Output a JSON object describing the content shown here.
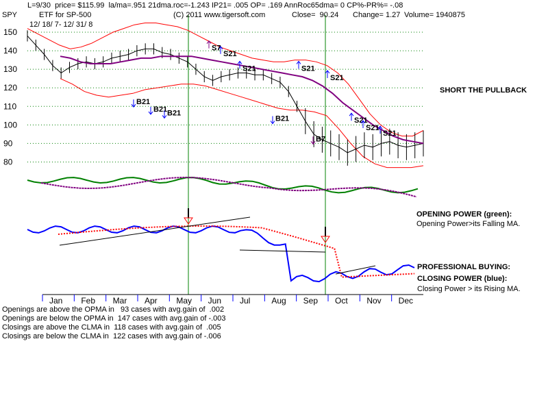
{
  "header": {
    "line1": "L=9/30  price= $115.99  la/ma=.951 21dma.roc=-1.243 IP21= .005 OP= .169 AnnRoc65dma= 0 CP%-PR%= -.08",
    "ticker": "SPY",
    "etf_label": "ETF for SP-500",
    "copyright": "(C) 2011 www.tigersoft.com",
    "close": "Close=  90.24",
    "change": "Change= 1.27",
    "volume": "Volume= 1940875",
    "date_range": "12/ 18/ 7- 12/ 31/ 8"
  },
  "annotations": {
    "short_pullback": "SHORT THE PULLBACK",
    "opening_power_title": "OPENING POWER (green):",
    "opening_power_desc": "Opening Power>its Falling MA.",
    "pro_buying": "PROFESSIONAL BUYING:",
    "closing_power_title": "CLOSING POWER (blue):",
    "closing_power_desc": "Closing Power > its Rising MA."
  },
  "stats": [
    "Openings are above the OPMA in   93 cases with avg.gain of  .002",
    "Openings are below the OPMA in  147 cases with avg.gain of -.003",
    "Closings are above the CLMA in  118 cases with avg.gain of  .005",
    "Closings are below the CLMA in  122 cases with avg.gain of -.006"
  ],
  "colors": {
    "price": "#000000",
    "band": "#ff0000",
    "ma": "#800080",
    "opening_power": "#008000",
    "closing_power": "#0000ff",
    "vline": "#008000",
    "signal": "#0000ff",
    "grid": "#008000"
  },
  "chart_data": {
    "type": "line",
    "ylim": [
      75,
      150
    ],
    "yticks": [
      150,
      140,
      130,
      120,
      110,
      100,
      90,
      80
    ],
    "months": [
      "Jan",
      "Feb",
      "Mar",
      "Apr",
      "May",
      "Jun",
      "Jul",
      "Aug",
      "Sep",
      "Oct",
      "Nov",
      "Dec"
    ],
    "price": [
      148,
      143,
      138,
      132,
      128,
      131,
      133,
      134,
      133,
      134,
      136,
      137,
      138,
      140,
      141,
      141,
      139,
      138,
      136,
      134,
      130,
      126,
      124,
      126,
      127,
      128,
      128,
      127,
      127,
      125,
      123,
      118,
      110,
      102,
      95,
      92,
      90,
      88,
      85,
      87,
      89,
      88,
      90,
      91,
      89,
      88,
      89,
      90
    ],
    "upper_band": [
      152,
      149,
      146,
      143,
      141,
      142,
      144,
      147,
      150,
      152,
      154,
      155,
      155,
      154,
      153,
      151,
      148,
      145,
      142,
      140,
      138,
      136,
      135,
      134,
      134,
      135,
      135,
      134,
      132,
      128,
      122,
      114,
      106,
      100,
      96,
      94,
      94,
      97
    ],
    "ma": [
      137,
      136,
      134,
      133,
      133,
      133,
      134,
      135,
      136,
      136,
      137,
      137,
      137,
      137,
      136,
      135,
      134,
      133,
      132,
      131,
      130,
      129,
      128,
      127,
      126,
      124,
      121,
      117,
      112,
      108,
      104,
      100,
      97,
      94,
      92,
      91,
      90
    ],
    "lower_band": [
      125,
      122,
      118,
      116,
      115,
      116,
      117,
      119,
      120,
      121,
      122,
      122,
      121,
      119,
      117,
      115,
      113,
      111,
      109,
      108,
      108,
      107,
      105,
      98,
      90,
      83,
      79,
      77,
      77,
      77,
      78
    ],
    "signals": [
      {
        "label": "B21",
        "price": 113
      },
      {
        "label": "B21",
        "price": 109
      },
      {
        "label": "B21",
        "price": 107
      },
      {
        "label": "S21",
        "price": 139
      },
      {
        "label": "S21",
        "price": 131
      },
      {
        "label": "S21",
        "price": 131
      },
      {
        "label": "S21",
        "price": 126
      },
      {
        "label": "B21",
        "price": 104
      },
      {
        "label": "B7",
        "price": 93
      },
      {
        "label": "S21",
        "price": 103
      },
      {
        "label": "S21",
        "price": 99
      },
      {
        "label": "S21",
        "price": 96
      },
      {
        "label": "S7",
        "price": 142
      }
    ]
  }
}
